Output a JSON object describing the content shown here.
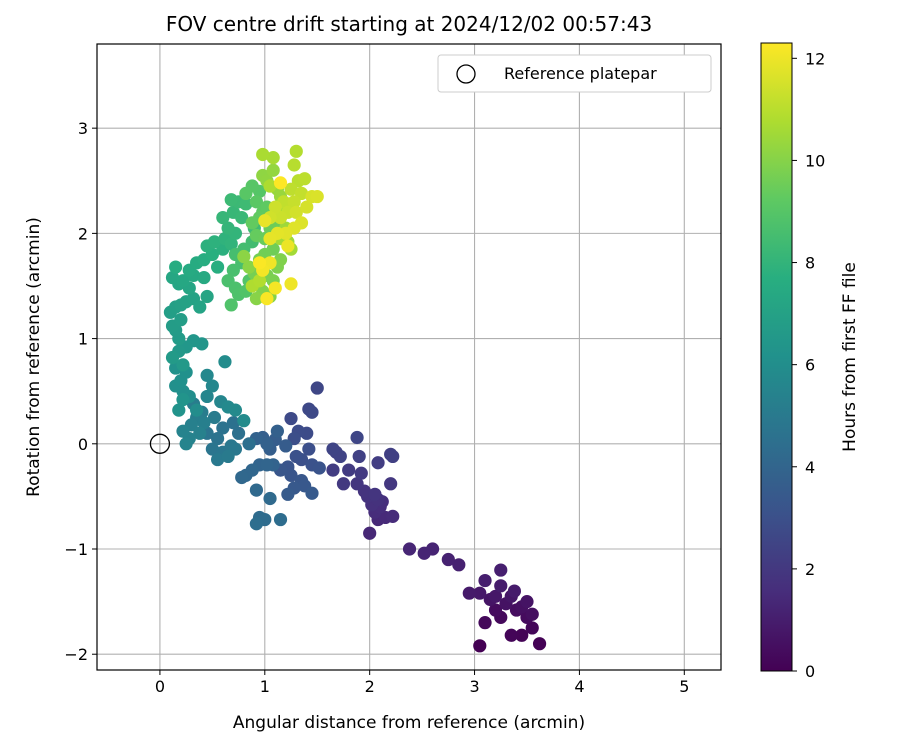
{
  "chart_data": {
    "type": "scatter",
    "title": "FOV centre drift starting at 2024/12/02 00:57:43",
    "xlabel": "Angular distance from reference (arcmin)",
    "ylabel": "Rotation from reference (arcmin)",
    "xlim": [
      -0.6,
      5.35
    ],
    "ylim": [
      -2.15,
      3.8
    ],
    "xticks": [
      "0",
      "1",
      "2",
      "3",
      "4",
      "5"
    ],
    "yticks": [
      "−2",
      "−1",
      "0",
      "1",
      "2",
      "3"
    ],
    "grid": true,
    "legend": {
      "position": "top-right",
      "label": "Reference platepar"
    },
    "reference_point": {
      "x": 0,
      "y": 0
    },
    "colorbar": {
      "label": "Hours from first FF file",
      "range": [
        0,
        12.3
      ],
      "ticks": [
        "0",
        "2",
        "4",
        "6",
        "8",
        "10",
        "12"
      ],
      "colormap": "viridis"
    },
    "series": [
      {
        "points": [
          [
            3.05,
            -1.92
          ],
          [
            3.62,
            -1.9
          ],
          [
            3.45,
            -1.82
          ],
          [
            3.35,
            -1.82
          ],
          [
            3.55,
            -1.75
          ],
          [
            3.1,
            -1.7
          ],
          [
            3.25,
            -1.65
          ],
          [
            3.5,
            -1.65
          ],
          [
            3.2,
            -1.58
          ],
          [
            3.4,
            -1.58
          ],
          [
            3.55,
            -1.62
          ],
          [
            3.45,
            -1.55
          ],
          [
            3.3,
            -1.52
          ],
          [
            3.5,
            -1.5
          ],
          [
            3.15,
            -1.48
          ],
          [
            3.35,
            -1.45
          ],
          [
            3.2,
            -1.45
          ],
          [
            3.05,
            -1.42
          ],
          [
            2.95,
            -1.42
          ],
          [
            3.38,
            -1.4
          ],
          [
            3.25,
            -1.35
          ],
          [
            3.1,
            -1.3
          ],
          [
            3.25,
            -1.2
          ],
          [
            2.85,
            -1.15
          ],
          [
            2.75,
            -1.1
          ],
          [
            2.6,
            -1.0
          ],
          [
            2.52,
            -1.04
          ],
          [
            2.38,
            -1.0
          ],
          [
            2.0,
            -0.85
          ],
          [
            2.08,
            -0.72
          ],
          [
            2.15,
            -0.7
          ],
          [
            2.22,
            -0.69
          ],
          [
            2.05,
            -0.65
          ],
          [
            2.1,
            -0.6
          ],
          [
            2.12,
            -0.55
          ],
          [
            2.02,
            -0.58
          ],
          [
            2.08,
            -0.53
          ],
          [
            1.98,
            -0.5
          ],
          [
            1.95,
            -0.45
          ],
          [
            2.05,
            -0.48
          ],
          [
            1.88,
            -0.38
          ],
          [
            2.2,
            -0.38
          ],
          [
            1.75,
            -0.38
          ],
          [
            1.92,
            -0.28
          ],
          [
            1.8,
            -0.25
          ],
          [
            1.65,
            -0.25
          ],
          [
            2.08,
            -0.18
          ],
          [
            2.2,
            -0.1
          ],
          [
            2.22,
            -0.12
          ],
          [
            1.9,
            -0.12
          ],
          [
            1.68,
            -0.08
          ],
          [
            1.72,
            -0.12
          ],
          [
            1.65,
            -0.05
          ],
          [
            1.88,
            0.06
          ],
          [
            1.5,
            0.53
          ],
          [
            1.42,
            0.33
          ],
          [
            1.45,
            0.3
          ],
          [
            1.25,
            0.24
          ],
          [
            1.4,
            0.1
          ],
          [
            1.32,
            0.12
          ],
          [
            1.28,
            0.05
          ],
          [
            1.42,
            -0.05
          ],
          [
            1.35,
            -0.15
          ],
          [
            1.3,
            -0.12
          ],
          [
            1.45,
            -0.2
          ],
          [
            1.52,
            -0.23
          ],
          [
            1.22,
            -0.22
          ],
          [
            1.25,
            -0.3
          ],
          [
            1.15,
            -0.25
          ],
          [
            1.35,
            -0.35
          ],
          [
            1.38,
            -0.4
          ],
          [
            1.28,
            -0.42
          ],
          [
            1.45,
            -0.47
          ],
          [
            1.22,
            -0.48
          ],
          [
            1.2,
            -0.02
          ],
          [
            1.1,
            0.04
          ],
          [
            1.05,
            -0.05
          ],
          [
            0.98,
            0.06
          ],
          [
            1.12,
            0.12
          ],
          [
            1.02,
            0.0
          ],
          [
            0.92,
            0.05
          ],
          [
            1.08,
            -0.2
          ],
          [
            0.95,
            -0.2
          ],
          [
            1.02,
            -0.2
          ],
          [
            0.88,
            -0.25
          ],
          [
            0.82,
            -0.3
          ],
          [
            0.78,
            -0.32
          ],
          [
            0.92,
            -0.44
          ],
          [
            1.05,
            -0.52
          ],
          [
            0.95,
            -0.7
          ],
          [
            1.0,
            -0.72
          ],
          [
            1.15,
            -0.72
          ],
          [
            0.92,
            -0.76
          ],
          [
            0.85,
            0.0
          ],
          [
            0.75,
            0.1
          ]
        ]
      },
      {
        "points": [
          [
            0.7,
            0.2
          ],
          [
            0.6,
            0.15
          ],
          [
            0.55,
            0.05
          ],
          [
            0.45,
            0.1
          ],
          [
            0.5,
            -0.05
          ],
          [
            0.6,
            -0.08
          ],
          [
            0.68,
            -0.02
          ],
          [
            0.72,
            -0.05
          ],
          [
            0.55,
            -0.15
          ],
          [
            0.65,
            -0.12
          ],
          [
            0.52,
            0.25
          ],
          [
            0.4,
            0.3
          ],
          [
            0.32,
            0.38
          ],
          [
            0.35,
            0.25
          ],
          [
            0.42,
            0.2
          ],
          [
            0.3,
            0.18
          ],
          [
            0.38,
            0.1
          ],
          [
            0.28,
            0.05
          ],
          [
            0.22,
            0.12
          ],
          [
            0.25,
            0.0
          ],
          [
            0.45,
            0.45
          ],
          [
            0.58,
            0.4
          ],
          [
            0.5,
            0.55
          ],
          [
            0.45,
            0.65
          ],
          [
            0.65,
            0.35
          ],
          [
            0.72,
            0.32
          ],
          [
            0.8,
            0.22
          ],
          [
            0.62,
            0.78
          ],
          [
            0.35,
            0.32
          ],
          [
            0.28,
            0.45
          ],
          [
            0.22,
            0.5
          ],
          [
            0.15,
            0.55
          ],
          [
            0.2,
            0.6
          ],
          [
            0.25,
            0.68
          ],
          [
            0.15,
            0.72
          ],
          [
            0.18,
            0.32
          ],
          [
            0.22,
            0.42
          ],
          [
            0.4,
            0.95
          ],
          [
            0.32,
            0.98
          ],
          [
            0.25,
            0.92
          ],
          [
            0.18,
            0.88
          ],
          [
            0.22,
            0.75
          ],
          [
            0.12,
            0.82
          ],
          [
            0.18,
            1.0
          ],
          [
            0.15,
            1.08
          ],
          [
            0.12,
            1.12
          ],
          [
            0.2,
            1.18
          ],
          [
            0.1,
            1.25
          ],
          [
            0.15,
            1.3
          ],
          [
            0.2,
            1.32
          ],
          [
            0.25,
            1.35
          ],
          [
            0.32,
            1.38
          ],
          [
            0.38,
            1.3
          ],
          [
            0.45,
            1.4
          ],
          [
            0.28,
            1.48
          ],
          [
            0.18,
            1.52
          ]
        ]
      },
      {
        "points": [
          [
            0.12,
            1.58
          ],
          [
            0.22,
            1.55
          ],
          [
            0.32,
            1.6
          ],
          [
            0.42,
            1.58
          ],
          [
            0.28,
            1.65
          ],
          [
            0.35,
            1.72
          ],
          [
            0.15,
            1.68
          ],
          [
            0.42,
            1.75
          ],
          [
            0.55,
            1.68
          ],
          [
            0.5,
            1.8
          ],
          [
            0.6,
            1.85
          ],
          [
            0.45,
            1.88
          ],
          [
            0.52,
            1.92
          ],
          [
            0.62,
            1.95
          ],
          [
            0.68,
            1.9
          ],
          [
            0.72,
            2.0
          ],
          [
            0.65,
            2.05
          ],
          [
            0.6,
            2.15
          ],
          [
            0.7,
            2.2
          ],
          [
            0.78,
            2.15
          ],
          [
            0.75,
            2.3
          ],
          [
            0.68,
            2.32
          ],
          [
            0.82,
            2.28
          ],
          [
            0.9,
            2.05
          ],
          [
            0.88,
            1.92
          ],
          [
            0.8,
            1.85
          ],
          [
            0.72,
            1.8
          ],
          [
            0.78,
            1.72
          ],
          [
            0.7,
            1.65
          ],
          [
            0.65,
            1.55
          ],
          [
            0.72,
            1.48
          ],
          [
            0.75,
            1.42
          ],
          [
            0.68,
            1.32
          ],
          [
            0.82,
            1.45
          ],
          [
            0.85,
            1.55
          ]
        ]
      },
      {
        "points": [
          [
            0.95,
            2.4
          ],
          [
            0.88,
            2.45
          ],
          [
            0.82,
            2.38
          ],
          [
            0.92,
            2.3
          ],
          [
            0.98,
            2.2
          ],
          [
            1.02,
            2.25
          ],
          [
            0.95,
            2.15
          ],
          [
            0.88,
            2.1
          ],
          [
            0.92,
            1.98
          ],
          [
            1.0,
            1.95
          ],
          [
            1.05,
            2.05
          ],
          [
            1.1,
            2.1
          ],
          [
            1.08,
            1.85
          ],
          [
            1.0,
            1.8
          ],
          [
            0.95,
            1.75
          ],
          [
            0.9,
            1.62
          ],
          [
            1.02,
            1.6
          ],
          [
            1.08,
            1.55
          ],
          [
            1.12,
            1.68
          ],
          [
            1.15,
            1.75
          ],
          [
            0.98,
            1.45
          ],
          [
            1.05,
            1.4
          ],
          [
            0.92,
            1.38
          ],
          [
            0.85,
            1.68
          ],
          [
            0.8,
            1.78
          ],
          [
            0.98,
            2.55
          ],
          [
            1.02,
            2.5
          ],
          [
            1.08,
            2.6
          ],
          [
            1.12,
            2.42
          ],
          [
            1.15,
            2.35
          ],
          [
            1.2,
            2.25
          ],
          [
            1.2,
            2.05
          ],
          [
            1.22,
            1.92
          ],
          [
            1.25,
            1.85
          ],
          [
            1.15,
            1.95
          ],
          [
            1.08,
            2.72
          ],
          [
            0.98,
            2.75
          ],
          [
            1.05,
            2.45
          ],
          [
            0.88,
            1.5
          ],
          [
            0.95,
            1.55
          ]
        ]
      },
      {
        "points": [
          [
            1.3,
            2.78
          ],
          [
            1.28,
            2.65
          ],
          [
            1.32,
            2.5
          ],
          [
            1.38,
            2.52
          ],
          [
            1.25,
            2.42
          ],
          [
            1.18,
            2.3
          ],
          [
            1.35,
            2.38
          ],
          [
            1.28,
            2.3
          ],
          [
            1.22,
            2.2
          ],
          [
            1.15,
            2.15
          ],
          [
            1.1,
            2.25
          ],
          [
            1.05,
            2.15
          ],
          [
            1.3,
            2.2
          ],
          [
            1.4,
            2.25
          ],
          [
            1.45,
            2.35
          ],
          [
            1.5,
            2.35
          ],
          [
            1.35,
            2.1
          ],
          [
            1.28,
            2.05
          ],
          [
            1.2,
            2.0
          ],
          [
            1.12,
            2.0
          ],
          [
            1.05,
            1.95
          ],
          [
            1.0,
            2.12
          ],
          [
            1.22,
            1.88
          ],
          [
            1.25,
            1.52
          ],
          [
            1.05,
            1.72
          ],
          [
            0.98,
            1.65
          ],
          [
            1.1,
            1.48
          ],
          [
            1.02,
            1.38
          ],
          [
            0.95,
            1.72
          ],
          [
            1.15,
            2.48
          ]
        ]
      }
    ]
  }
}
